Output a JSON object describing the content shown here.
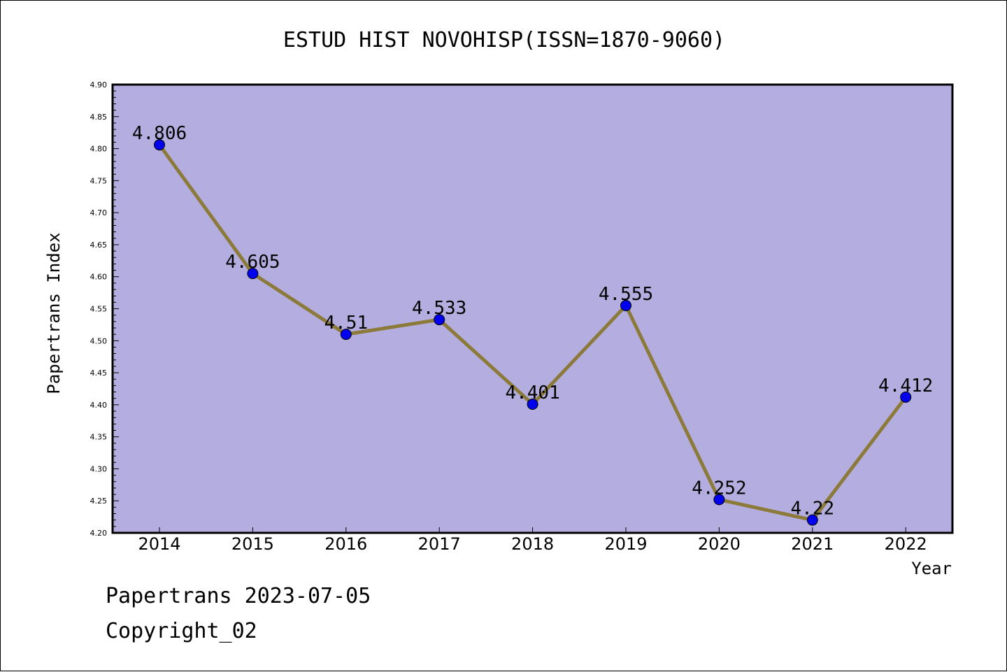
{
  "chart_data": {
    "type": "line",
    "title": "ESTUD HIST NOVOHISP(ISSN=1870-9060)",
    "xlabel": "Year",
    "ylabel": "Papertrans Index",
    "categories": [
      "2014",
      "2015",
      "2016",
      "2017",
      "2018",
      "2019",
      "2020",
      "2021",
      "2022"
    ],
    "series": [
      {
        "values": [
          4.806,
          4.605,
          4.51,
          4.533,
          4.401,
          4.555,
          4.252,
          4.22,
          4.412
        ],
        "labels": [
          "4.806",
          "4.605",
          "4.51",
          "4.533",
          "4.401",
          "4.555",
          "4.252",
          "4.22",
          "4.412"
        ]
      }
    ],
    "ylim": [
      4.2,
      4.9
    ],
    "yticks": [
      "4.20",
      "4.25",
      "4.30",
      "4.35",
      "4.40",
      "4.45",
      "4.50",
      "4.55",
      "4.60",
      "4.65",
      "4.70",
      "4.75",
      "4.80",
      "4.85",
      "4.90"
    ],
    "grid": false,
    "legend": "none",
    "colors": {
      "plot_background": "#b4aee0",
      "line": "#8b7a3a",
      "marker": "#0000ee"
    }
  },
  "footer": {
    "line1": "Papertrans 2023-07-05",
    "line2": "Copyright_02"
  }
}
